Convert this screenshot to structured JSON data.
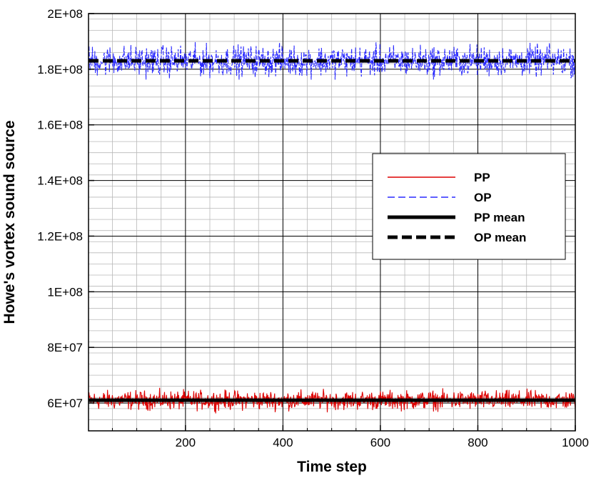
{
  "chart_data": {
    "type": "line",
    "xlabel": "Time step",
    "ylabel": "Howe's vortex sound source",
    "xlim": [
      1,
      1000
    ],
    "ylim": [
      50000000,
      200000000
    ],
    "x_major_ticks": [
      200,
      400,
      600,
      800,
      1000
    ],
    "x_tick_labels": [
      "200",
      "400",
      "600",
      "800",
      "1000"
    ],
    "x_minor_step": 50,
    "y_major_ticks": [
      60000000,
      80000000,
      100000000,
      120000000,
      140000000,
      160000000,
      180000000,
      200000000
    ],
    "y_tick_labels": [
      "6E+07",
      "8E+07",
      "1E+08",
      "1.2E+08",
      "1.4E+08",
      "1.6E+08",
      "1.8E+08",
      "2E+08"
    ],
    "y_minor_step": 4000000,
    "grid": true,
    "legend_position": "center-right",
    "series": [
      {
        "name": "PP",
        "color": "#dd0000",
        "style": "solid",
        "mean": 61000000,
        "amplitude": 5000000,
        "samples": 1000
      },
      {
        "name": "OP",
        "color": "#2a2aff",
        "style": "dashed",
        "mean": 183000000,
        "amplitude": 8000000,
        "samples": 1000
      },
      {
        "name": "PP mean",
        "color": "#000000",
        "style": "solid-thick",
        "value": 61000000
      },
      {
        "name": "OP mean",
        "color": "#000000",
        "style": "dashed-thick",
        "value": 183000000
      }
    ]
  }
}
